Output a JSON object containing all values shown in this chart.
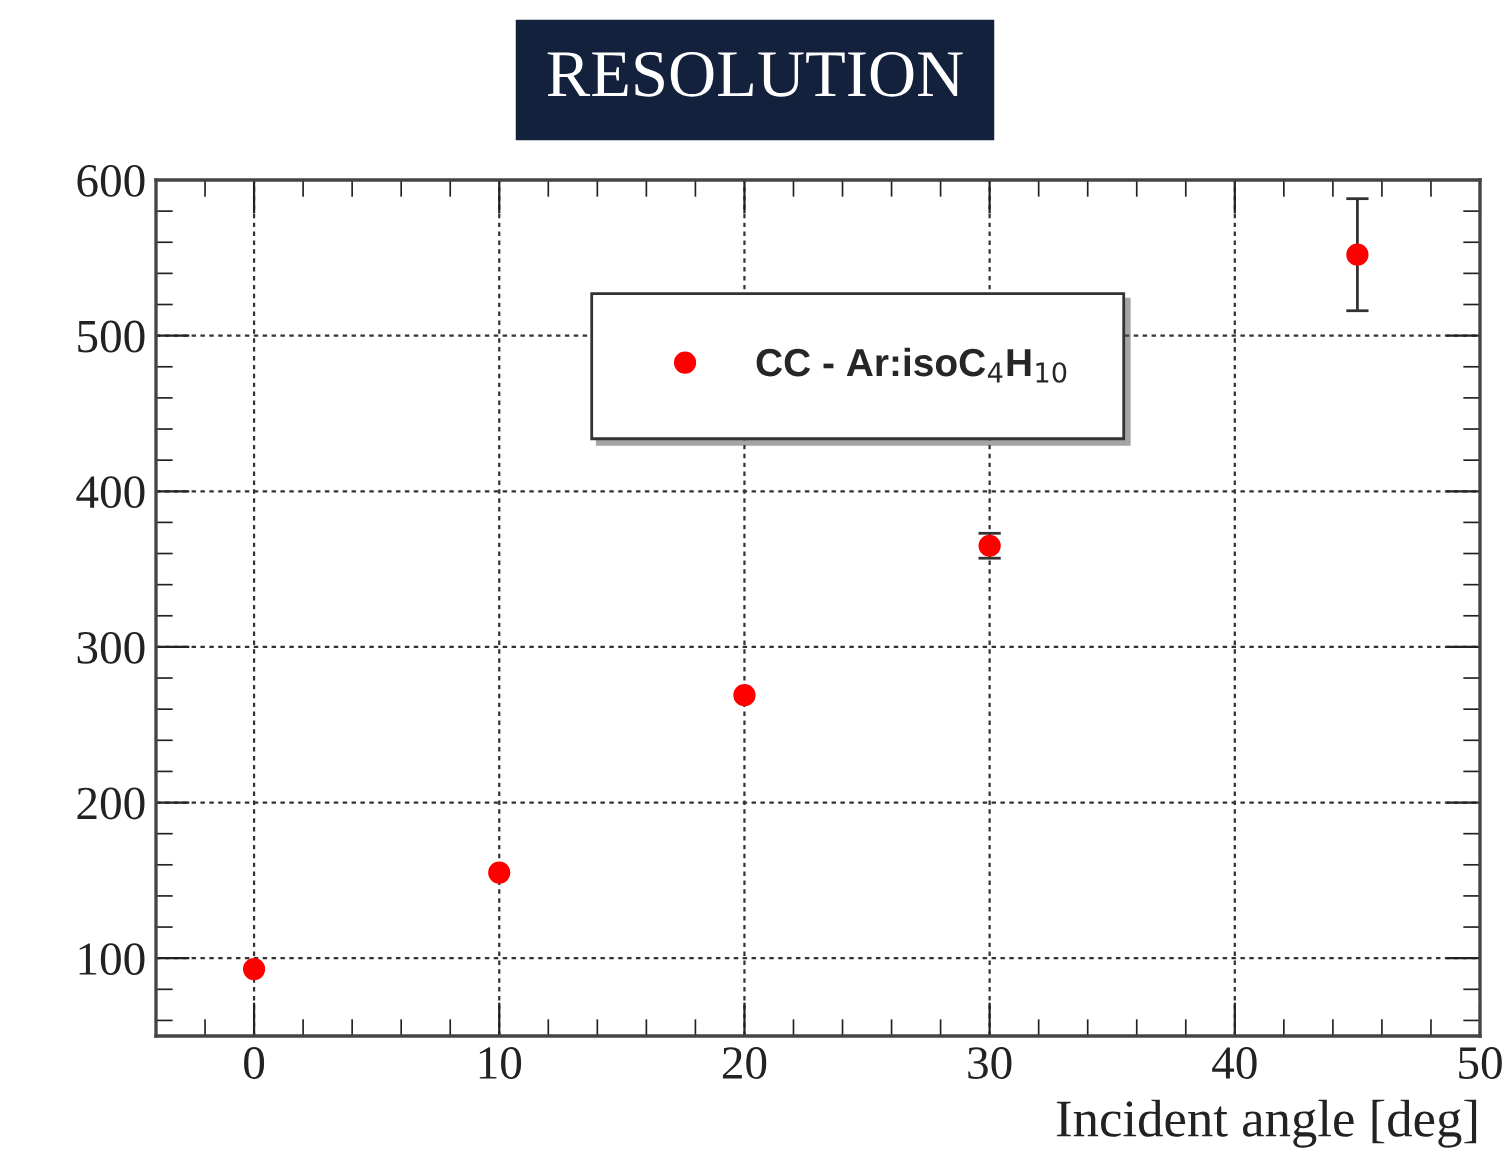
{
  "chart_data": {
    "type": "scatter",
    "title": "RESOLUTION",
    "xlabel": "Incident angle [deg]",
    "x": [
      0,
      10,
      20,
      30,
      45
    ],
    "series": [
      {
        "name": "CC - Ar:isoC$_{4}$H$_{10}$",
        "color": "#ff0000",
        "values": [
          93,
          155,
          269,
          365,
          552
        ],
        "errors": [
          null,
          null,
          null,
          8,
          36
        ]
      }
    ],
    "xlim": [
      -4,
      50
    ],
    "xticks": [
      0,
      10,
      20,
      30,
      40,
      50
    ],
    "ylim": [
      50,
      600
    ],
    "yticks": [
      100,
      200,
      300,
      400,
      500,
      600
    ],
    "grid": true,
    "legend": "top",
    "marker": "circle"
  }
}
